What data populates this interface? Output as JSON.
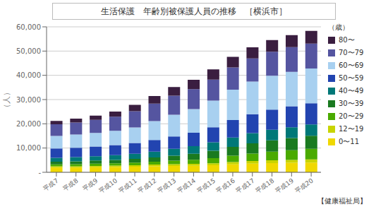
{
  "chart_data": {
    "type": "bar",
    "stacked": true,
    "title": "生活保護　年齢別被保護人員の推移　［横浜市］",
    "ylabel": "（人）",
    "legend_title": "（歳）",
    "annotations": [
      "【健康福祉局】"
    ],
    "categories": [
      "平成7",
      "平成8",
      "平成9",
      "平成10",
      "平成11",
      "平成12",
      "平成13",
      "平成14",
      "平成15",
      "平成16",
      "平成17",
      "平成18",
      "平成19",
      "平成20"
    ],
    "series": [
      {
        "name": "0〜11",
        "color": "#f0d800",
        "values": [
          2000,
          2000,
          2100,
          2200,
          2300,
          2500,
          2600,
          2700,
          2900,
          3300,
          3600,
          3800,
          3900,
          4000
        ]
      },
      {
        "name": "12〜19",
        "color": "#c8d400",
        "values": [
          500,
          500,
          550,
          580,
          620,
          670,
          720,
          780,
          850,
          950,
          1050,
          1150,
          1200,
          1300
        ]
      },
      {
        "name": "20〜29",
        "color": "#4aaa00",
        "values": [
          800,
          850,
          900,
          950,
          1050,
          1200,
          1450,
          1700,
          2100,
          2600,
          3100,
          3600,
          4000,
          4400
        ]
      },
      {
        "name": "30〜39",
        "color": "#1a7a20",
        "values": [
          1100,
          1200,
          1300,
          1400,
          1550,
          1750,
          2100,
          2500,
          3000,
          3600,
          4200,
          4600,
          5000,
          5400
        ]
      },
      {
        "name": "40〜49",
        "color": "#007878",
        "values": [
          1600,
          1700,
          1800,
          1900,
          2100,
          2400,
          2800,
          3100,
          3500,
          3900,
          4200,
          4400,
          4500,
          4600
        ]
      },
      {
        "name": "50〜59",
        "color": "#2244b0",
        "values": [
          3800,
          3900,
          4000,
          4200,
          4500,
          4800,
          5100,
          5500,
          6200,
          7200,
          7800,
          8300,
          8600,
          8800
        ]
      },
      {
        "name": "60〜69",
        "color": "#a8d0f0",
        "values": [
          5200,
          5400,
          5600,
          5900,
          6400,
          7800,
          9000,
          9800,
          11000,
          12500,
          13500,
          14000,
          14200,
          14300
        ]
      },
      {
        "name": "70〜79",
        "color": "#5555a0",
        "values": [
          4800,
          5000,
          5400,
          5800,
          6700,
          7200,
          7800,
          8200,
          8700,
          9200,
          9500,
          9900,
          10200,
          10300
        ]
      },
      {
        "name": "80〜",
        "color": "#3a1e40",
        "values": [
          1400,
          1600,
          1700,
          2100,
          2600,
          3100,
          3600,
          3900,
          4200,
          4400,
          4600,
          4800,
          5000,
          5200
        ]
      }
    ],
    "ylim": [
      0,
      60000
    ],
    "yticks": [
      {
        "value": 0,
        "label": "-"
      },
      {
        "value": 10000,
        "label": "10,000"
      },
      {
        "value": 20000,
        "label": "20,000"
      },
      {
        "value": 30000,
        "label": "30,000"
      },
      {
        "value": 40000,
        "label": "40,000"
      },
      {
        "value": 50000,
        "label": "50,000"
      },
      {
        "value": 60000,
        "label": "60,000"
      }
    ],
    "grid": true,
    "legend": "right"
  }
}
